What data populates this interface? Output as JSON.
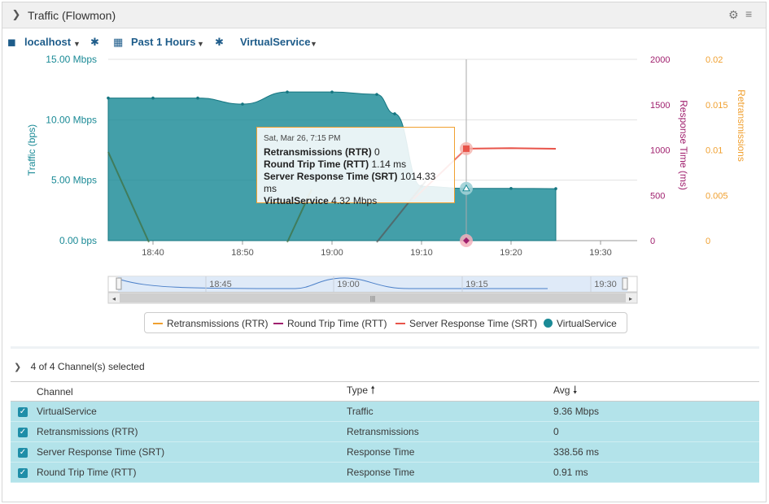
{
  "panel": {
    "title": "Traffic (Flowmon)",
    "collapse_icon": "chevron-down-icon",
    "settings_icon": "gear-icon",
    "menu_icon": "menu-icon"
  },
  "toolbar": {
    "device": "localhost",
    "time_range": "Past 1 Hours",
    "service": "VirtualService"
  },
  "chart_data": {
    "type": "area",
    "x_ticks": [
      "18:40",
      "18:50",
      "19:00",
      "19:10",
      "19:20",
      "19:30"
    ],
    "y_left": {
      "label": "Traffic (bps)",
      "ticks": [
        "15.00 Mbps",
        "10.00 Mbps",
        "5.00 Mbps",
        "0.00 bps"
      ],
      "range_mbps": [
        0,
        15
      ]
    },
    "y_right1": {
      "label": "Response Time (ms)",
      "ticks": [
        "2000",
        "1500",
        "1000",
        "500",
        "0"
      ],
      "range": [
        0,
        2000
      ]
    },
    "y_right2": {
      "label": "Retransmissions",
      "ticks": [
        "0.02",
        "0.015",
        "0.01",
        "0.005",
        "0"
      ],
      "range": [
        0,
        0.02
      ]
    },
    "series": [
      {
        "name": "VirtualService",
        "color": "#1a8a96",
        "unit": "Mbps",
        "x": [
          "18:35",
          "18:40",
          "18:45",
          "18:50",
          "18:55",
          "19:00",
          "19:05",
          "19:07",
          "19:10",
          "19:15",
          "19:20",
          "19:25"
        ],
        "values": [
          11.8,
          11.8,
          11.8,
          11.3,
          12.3,
          12.3,
          12.1,
          10.5,
          4.5,
          4.32,
          4.32,
          4.3
        ]
      },
      {
        "name": "Server Response Time (SRT)",
        "color": "#e8544a",
        "unit": "ms",
        "x": [
          "19:15",
          "19:20",
          "19:25"
        ],
        "values": [
          1014.33,
          1020,
          1014
        ]
      },
      {
        "name": "Round Trip Time (RTT)",
        "color": "#a0206e",
        "unit": "ms",
        "x": [
          "19:15"
        ],
        "values": [
          1.14
        ]
      },
      {
        "name": "Retransmissions (RTR)",
        "color": "#f0a030",
        "unit": "",
        "x": [
          "19:15"
        ],
        "values": [
          0
        ]
      }
    ],
    "navigator_ticks": [
      "18:45",
      "19:00",
      "19:15",
      "19:30"
    ],
    "tooltip": {
      "date": "Sat, Mar 26, 7:15 PM",
      "rows": [
        {
          "label": "Retransmissions (RTR)",
          "value": "0"
        },
        {
          "label": "Round Trip Time (RTT)",
          "value": "1.14 ms"
        },
        {
          "label": "Server Response Time (SRT)",
          "value": "1014.33 ms"
        },
        {
          "label": "VirtualService",
          "value": "4.32 Mbps"
        }
      ]
    },
    "legend": [
      {
        "name": "Retransmissions (RTR)",
        "color": "#f0a030"
      },
      {
        "name": "Round Trip Time (RTT)",
        "color": "#a0206e"
      },
      {
        "name": "Server Response Time (SRT)",
        "color": "#e8544a"
      },
      {
        "name": "VirtualService",
        "color": "#1a8a96"
      }
    ]
  },
  "channels": {
    "summary": "4 of 4 Channel(s) selected",
    "headers": {
      "channel": "Channel",
      "type": "Type",
      "avg": "Avg"
    },
    "rows": [
      {
        "channel": "VirtualService",
        "type": "Traffic",
        "avg": "9.36 Mbps"
      },
      {
        "channel": "Retransmissions (RTR)",
        "type": "Retransmissions",
        "avg": "0"
      },
      {
        "channel": "Server Response Time (SRT)",
        "type": "Response Time",
        "avg": "338.56 ms"
      },
      {
        "channel": "Round Trip Time (RTT)",
        "type": "Response Time",
        "avg": "0.91 ms"
      }
    ]
  }
}
